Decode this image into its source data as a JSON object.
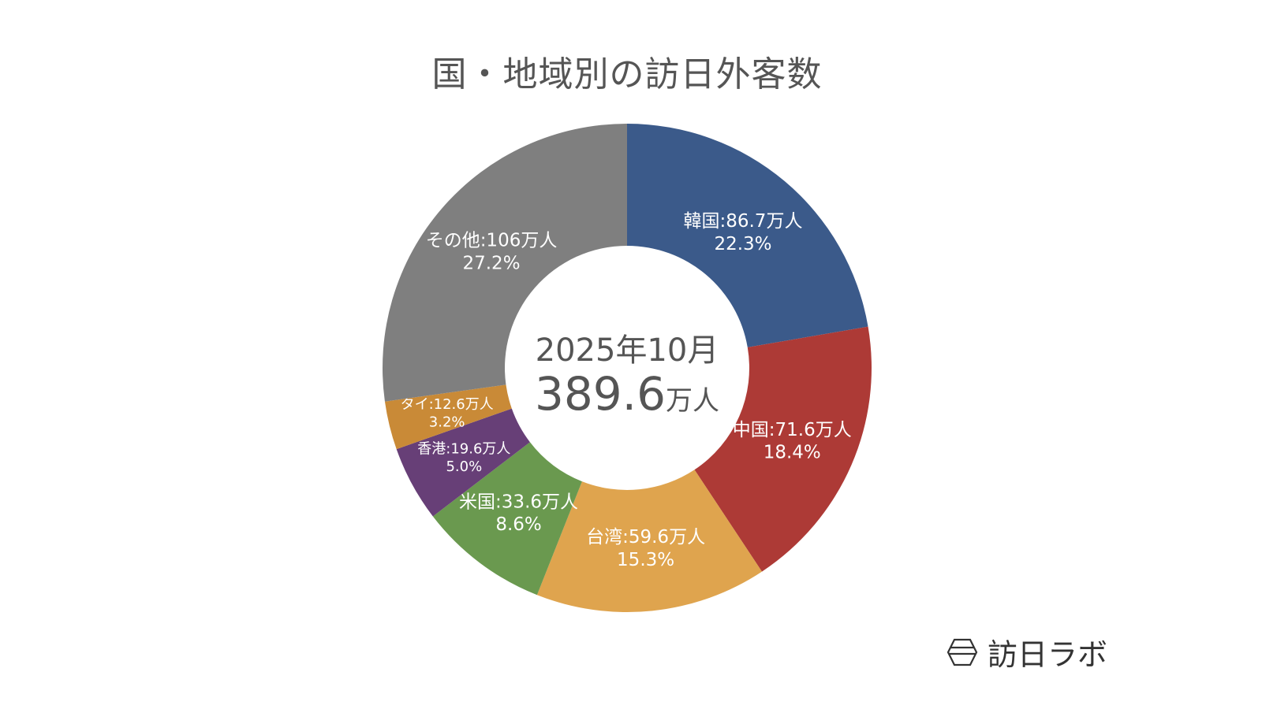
{
  "chart_data": {
    "type": "pie",
    "variant": "donut",
    "title": "国・地域別の訪日外客数",
    "center_label": {
      "date": "2025年10月",
      "total": "389.6",
      "total_unit": "万人"
    },
    "start_angle": "12 o'clock, clockwise",
    "slices": [
      {
        "name": "韓国",
        "value_label": "86.7万人",
        "value": 86.7,
        "percent": 22.3,
        "color": "#3b5a8a"
      },
      {
        "name": "中国",
        "value_label": "71.6万人",
        "value": 71.6,
        "percent": 18.4,
        "color": "#ad3a36"
      },
      {
        "name": "台湾",
        "value_label": "59.6万人",
        "value": 59.6,
        "percent": 15.3,
        "color": "#dfa44e"
      },
      {
        "name": "米国",
        "value_label": "33.6万人",
        "value": 33.6,
        "percent": 8.6,
        "color": "#6a994f"
      },
      {
        "name": "香港",
        "value_label": "19.6万人",
        "value": 19.6,
        "percent": 5.0,
        "color": "#673f77"
      },
      {
        "name": "タイ",
        "value_label": "12.6万人",
        "value": 12.6,
        "percent": 3.2,
        "color": "#c98a37"
      },
      {
        "name": "その他",
        "value_label": "106万人",
        "value": 106,
        "percent": 27.2,
        "color": "#7f7f7f"
      }
    ]
  },
  "logo": {
    "text": "訪日ラボ"
  }
}
